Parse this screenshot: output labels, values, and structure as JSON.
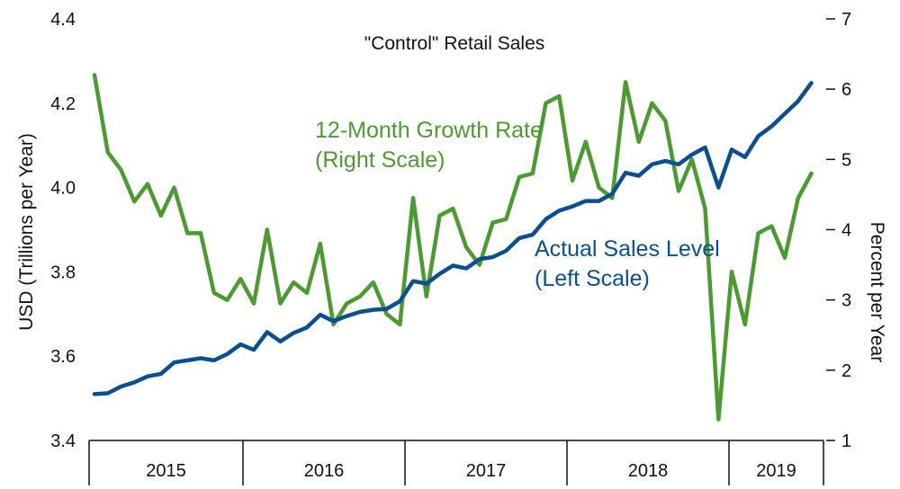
{
  "chart_data": {
    "type": "line",
    "title": "\"Control\" Retail Sales",
    "ylabel_left": "USD (Trillions per Year)",
    "ylabel_right": "Percent per Year",
    "ylim_left": [
      3.4,
      4.4
    ],
    "ylim_right": [
      1,
      7
    ],
    "yticks_left": [
      "3.4",
      "3.6",
      "3.8",
      "4.0",
      "4.2",
      "4.4"
    ],
    "yticks_right": [
      "1",
      "2",
      "3",
      "4",
      "5",
      "6",
      "7"
    ],
    "years": [
      "2015",
      "2016",
      "2017",
      "2018",
      "2019"
    ],
    "start_month": "2014-11",
    "colors": {
      "level": "#0b4f8f",
      "growth": "#4e9a32",
      "axis": "#111111"
    },
    "annotations": {
      "growth_line1": "12-Month Growth Rate",
      "growth_line2": "(Right Scale)",
      "level_line1": "Actual Sales Level",
      "level_line2": "(Left Scale)"
    },
    "series": [
      {
        "name": "Actual Sales Level (Left Scale)",
        "axis": "left",
        "values": [
          3.51,
          3.512,
          3.528,
          3.538,
          3.552,
          3.558,
          3.585,
          3.59,
          3.595,
          3.59,
          3.605,
          3.628,
          3.615,
          3.657,
          3.635,
          3.655,
          3.668,
          3.698,
          3.683,
          3.695,
          3.705,
          3.71,
          3.712,
          3.73,
          3.778,
          3.772,
          3.795,
          3.815,
          3.808,
          3.83,
          3.835,
          3.85,
          3.88,
          3.888,
          3.925,
          3.945,
          3.955,
          3.968,
          3.968,
          3.985,
          4.035,
          4.028,
          4.055,
          4.063,
          4.055,
          4.078,
          4.095,
          4.0,
          4.09,
          4.072,
          4.122,
          4.145,
          4.175,
          4.205,
          4.248
        ]
      },
      {
        "name": "12-Month Growth Rate (Right Scale)",
        "axis": "right",
        "values": [
          6.2,
          5.1,
          4.85,
          4.4,
          4.65,
          4.2,
          4.6,
          3.95,
          3.95,
          3.1,
          3.0,
          3.3,
          2.95,
          4.0,
          2.95,
          3.25,
          3.1,
          3.8,
          2.65,
          2.95,
          3.05,
          3.25,
          2.8,
          2.65,
          4.45,
          3.05,
          4.2,
          4.3,
          3.75,
          3.5,
          4.1,
          4.15,
          4.75,
          4.8,
          5.8,
          5.9,
          4.7,
          5.25,
          4.6,
          4.45,
          6.1,
          5.25,
          5.8,
          5.55,
          4.55,
          5.0,
          4.3,
          1.3,
          3.4,
          2.65,
          3.95,
          4.05,
          3.6,
          4.45,
          4.8
        ]
      }
    ]
  }
}
